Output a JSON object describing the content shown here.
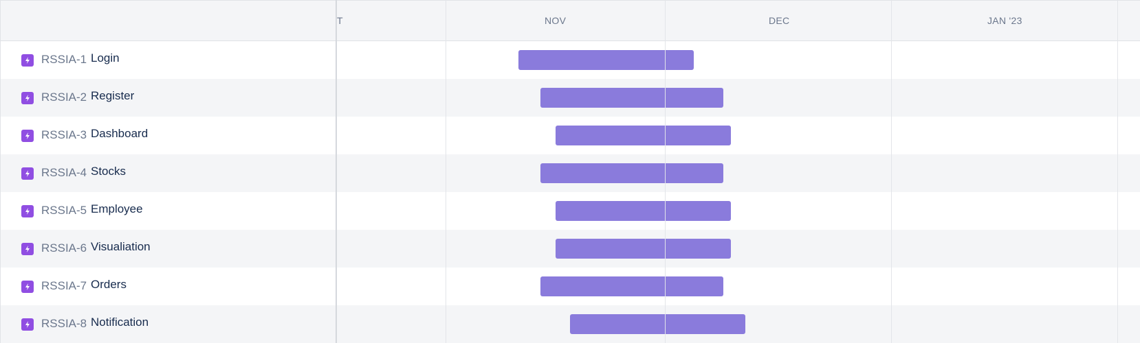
{
  "timeline": {
    "months": [
      "T",
      "NOV",
      "DEC",
      "JAN '23"
    ]
  },
  "colors": {
    "bar": "#8a7bdc",
    "issue_icon": "#904ee2",
    "row_alt": "#f4f5f7"
  },
  "issues": [
    {
      "key": "RSSIA-1",
      "title": "Login",
      "icon": "bolt-icon",
      "start": "2022-11-11",
      "end": "2022-12-05"
    },
    {
      "key": "RSSIA-2",
      "title": "Register",
      "icon": "bolt-icon",
      "start": "2022-11-14",
      "end": "2022-12-09"
    },
    {
      "key": "RSSIA-3",
      "title": "Dashboard",
      "icon": "bolt-icon",
      "start": "2022-11-16",
      "end": "2022-12-10"
    },
    {
      "key": "RSSIA-4",
      "title": "Stocks",
      "icon": "bolt-icon",
      "start": "2022-11-14",
      "end": "2022-12-09"
    },
    {
      "key": "RSSIA-5",
      "title": "Employee",
      "icon": "bolt-icon",
      "start": "2022-11-16",
      "end": "2022-12-10"
    },
    {
      "key": "RSSIA-6",
      "title": "Visualiation",
      "icon": "bolt-icon",
      "start": "2022-11-16",
      "end": "2022-12-10"
    },
    {
      "key": "RSSIA-7",
      "title": "Orders",
      "icon": "bolt-icon",
      "start": "2022-11-14",
      "end": "2022-12-09"
    },
    {
      "key": "RSSIA-8",
      "title": "Notification",
      "icon": "bolt-icon",
      "start": "2022-11-18",
      "end": "2022-12-12"
    }
  ]
}
